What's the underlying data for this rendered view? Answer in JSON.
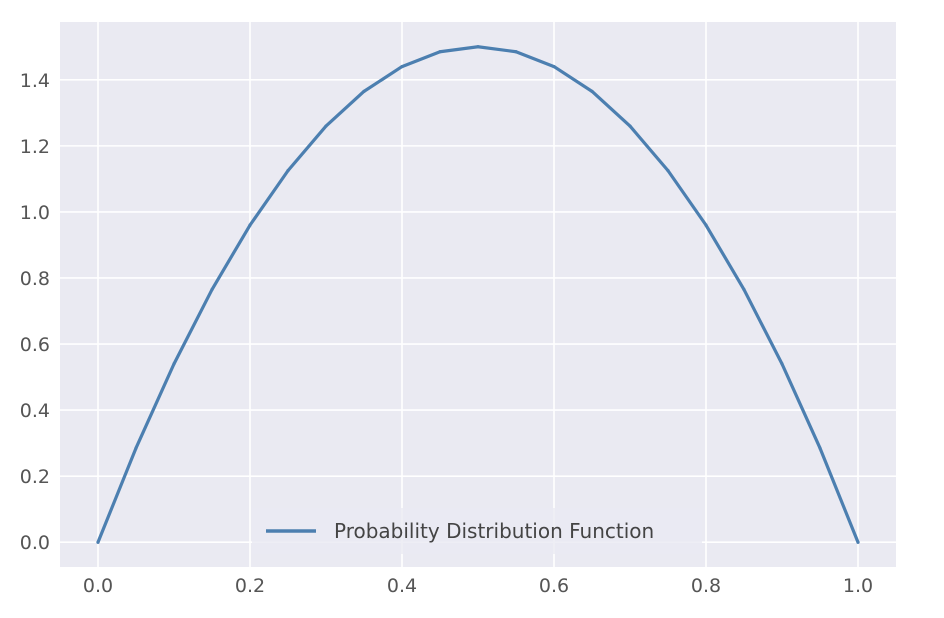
{
  "chart_data": {
    "type": "line",
    "title": "",
    "xlabel": "",
    "ylabel": "",
    "xlim": [
      -0.05,
      1.05
    ],
    "ylim": [
      -0.075,
      1.575
    ],
    "xticks": [
      0.0,
      0.2,
      0.4,
      0.6,
      0.8,
      1.0
    ],
    "xtick_labels": [
      "0.0",
      "0.2",
      "0.4",
      "0.6",
      "0.8",
      "1.0"
    ],
    "yticks": [
      0.0,
      0.2,
      0.4,
      0.6,
      0.8,
      1.0,
      1.2,
      1.4
    ],
    "ytick_labels": [
      "0.0",
      "0.2",
      "0.4",
      "0.6",
      "0.8",
      "1.0",
      "1.2",
      "1.4"
    ],
    "grid": true,
    "legend_position": "lower center",
    "series": [
      {
        "name": "Probability Distribution Function",
        "color": "#4C7FB0",
        "function": "6*x*(1-x)",
        "x": [
          0.0,
          0.05,
          0.1,
          0.15,
          0.2,
          0.25,
          0.3,
          0.35,
          0.4,
          0.45,
          0.5,
          0.55,
          0.6,
          0.65,
          0.7,
          0.75,
          0.8,
          0.85,
          0.9,
          0.95,
          1.0
        ],
        "y": [
          0.0,
          0.285,
          0.54,
          0.765,
          0.96,
          1.125,
          1.26,
          1.365,
          1.44,
          1.485,
          1.5,
          1.485,
          1.44,
          1.365,
          1.26,
          1.125,
          0.96,
          0.765,
          0.54,
          0.285,
          0.0
        ]
      }
    ],
    "colors": {
      "plot_background": "#EAEAF2",
      "grid": "#FFFFFF",
      "tick_text": "#555555"
    }
  }
}
